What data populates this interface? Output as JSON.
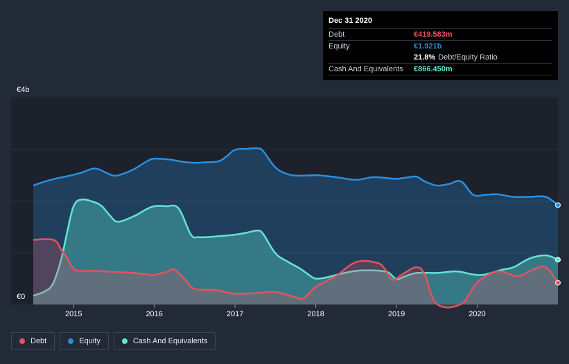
{
  "tooltip": {
    "date": "Dec 31 2020",
    "debt_label": "Debt",
    "debt_value": "€419.583m",
    "equity_label": "Equity",
    "equity_value": "€1.921b",
    "ratio_pct": "21.8%",
    "ratio_label": "Debt/Equity Ratio",
    "cash_label": "Cash And Equivalents",
    "cash_value": "€866.450m"
  },
  "legend": {
    "debt": "Debt",
    "equity": "Equity",
    "cash": "Cash And Equivalents"
  },
  "colors": {
    "debt": "#e5535f",
    "equity": "#2b8fde",
    "cash": "#62e4d4",
    "background": "#232a37",
    "plot_area": "#1c212c"
  },
  "chart_data": {
    "type": "area",
    "title": "",
    "ylabel_top": "€4b",
    "ylabel_bottom": "€0",
    "ylim": [
      0,
      4
    ],
    "xlim": [
      2014.5,
      2021.0
    ],
    "x_ticks": [
      2015,
      2016,
      2017,
      2018,
      2019,
      2020
    ],
    "x_tick_labels": [
      "2015",
      "2016",
      "2017",
      "2018",
      "2019",
      "2020"
    ],
    "series": [
      {
        "name": "Equity",
        "unit": "€b",
        "x": [
          2014.5,
          2014.65,
          2014.8,
          2014.95,
          2015.1,
          2015.22,
          2015.3,
          2015.4,
          2015.5,
          2015.6,
          2015.75,
          2015.9,
          2016.0,
          2016.2,
          2016.35,
          2016.5,
          2016.65,
          2016.8,
          2016.9,
          2017.0,
          2017.15,
          2017.28,
          2017.35,
          2017.5,
          2017.65,
          2017.8,
          2018.0,
          2018.15,
          2018.3,
          2018.5,
          2018.7,
          2018.85,
          2019.0,
          2019.15,
          2019.25,
          2019.35,
          2019.5,
          2019.65,
          2019.8,
          2019.95,
          2020.1,
          2020.25,
          2020.45,
          2020.65,
          2020.85,
          2021.0
        ],
        "values": [
          2.3,
          2.38,
          2.44,
          2.49,
          2.55,
          2.62,
          2.62,
          2.55,
          2.49,
          2.52,
          2.62,
          2.76,
          2.82,
          2.8,
          2.76,
          2.74,
          2.75,
          2.77,
          2.87,
          2.99,
          3.01,
          3.02,
          2.96,
          2.65,
          2.52,
          2.49,
          2.5,
          2.48,
          2.45,
          2.41,
          2.46,
          2.45,
          2.43,
          2.46,
          2.47,
          2.38,
          2.3,
          2.33,
          2.38,
          2.12,
          2.12,
          2.13,
          2.08,
          2.08,
          2.08,
          1.921
        ]
      },
      {
        "name": "Cash And Equivalents",
        "unit": "€b",
        "x": [
          2014.5,
          2014.65,
          2014.75,
          2014.85,
          2014.92,
          2015.0,
          2015.1,
          2015.25,
          2015.35,
          2015.45,
          2015.55,
          2015.75,
          2015.9,
          2016.0,
          2016.15,
          2016.3,
          2016.45,
          2016.55,
          2016.8,
          2017.0,
          2017.15,
          2017.28,
          2017.35,
          2017.5,
          2017.65,
          2017.8,
          2017.9,
          2018.0,
          2018.15,
          2018.3,
          2018.5,
          2018.7,
          2018.8,
          2018.9,
          2019.0,
          2019.1,
          2019.25,
          2019.5,
          2019.75,
          2019.95,
          2020.1,
          2020.3,
          2020.45,
          2020.65,
          2020.85,
          2021.0
        ],
        "values": [
          0.17,
          0.26,
          0.42,
          0.9,
          1.4,
          1.9,
          2.03,
          1.98,
          1.9,
          1.72,
          1.6,
          1.71,
          1.84,
          1.9,
          1.9,
          1.86,
          1.36,
          1.3,
          1.32,
          1.35,
          1.39,
          1.43,
          1.36,
          0.99,
          0.83,
          0.7,
          0.59,
          0.5,
          0.53,
          0.59,
          0.65,
          0.66,
          0.65,
          0.62,
          0.49,
          0.54,
          0.61,
          0.61,
          0.64,
          0.58,
          0.58,
          0.67,
          0.72,
          0.89,
          0.95,
          0.866
        ]
      },
      {
        "name": "Debt",
        "unit": "€b",
        "x": [
          2014.5,
          2014.75,
          2014.85,
          2014.92,
          2015.0,
          2015.1,
          2015.25,
          2015.5,
          2015.75,
          2015.95,
          2016.0,
          2016.15,
          2016.25,
          2016.4,
          2016.5,
          2016.75,
          2017.0,
          2017.25,
          2017.5,
          2017.75,
          2017.85,
          2018.0,
          2018.25,
          2018.5,
          2018.75,
          2018.85,
          2018.95,
          2019.1,
          2019.25,
          2019.35,
          2019.5,
          2019.8,
          2020.0,
          2020.25,
          2020.5,
          2020.7,
          2020.85,
          2021.0
        ],
        "values": [
          1.25,
          1.25,
          1.05,
          0.9,
          0.69,
          0.65,
          0.65,
          0.63,
          0.61,
          0.57,
          0.57,
          0.63,
          0.67,
          0.45,
          0.3,
          0.28,
          0.21,
          0.22,
          0.24,
          0.14,
          0.12,
          0.34,
          0.55,
          0.82,
          0.81,
          0.7,
          0.48,
          0.61,
          0.72,
          0.58,
          0.01,
          0.01,
          0.42,
          0.64,
          0.55,
          0.68,
          0.72,
          0.42
        ]
      }
    ]
  }
}
